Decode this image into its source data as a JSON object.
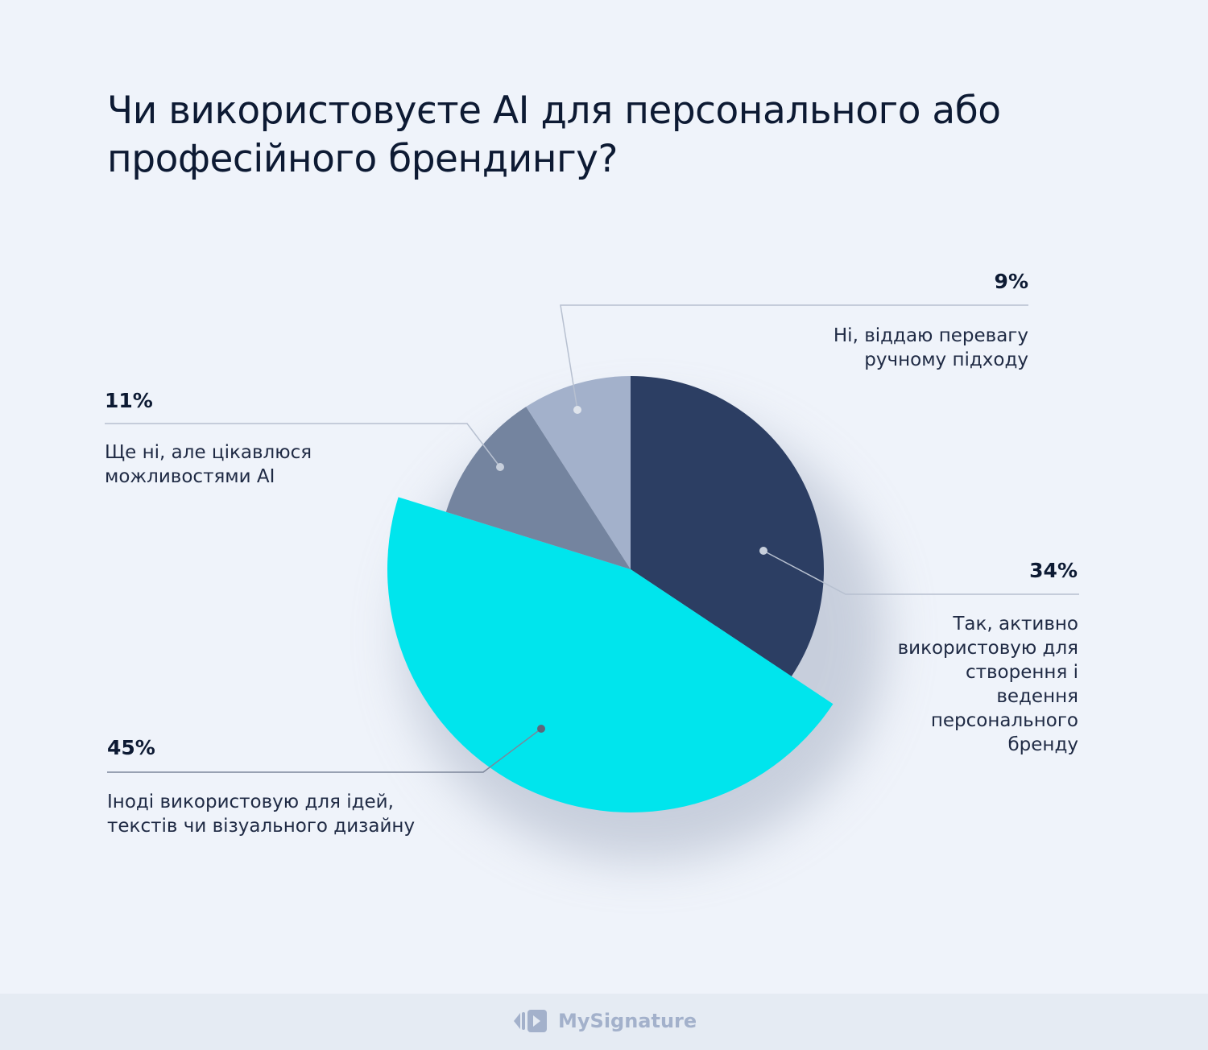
{
  "title": "Чи використовуєте AI для персонального або професійного брендингу?",
  "chart_data": {
    "type": "pie",
    "title": "Чи використовуєте AI для персонального або професійного брендингу?",
    "slices": [
      {
        "label": "Так, активно використовую для створення і ведення персонального бренду",
        "value": 34,
        "value_label": "34%",
        "color": "#2c3e63"
      },
      {
        "label": "Іноді використовую для ідей, текстів чи візуального дизайну",
        "value": 45,
        "value_label": "45%",
        "color": "#00e5ed",
        "exploded": true
      },
      {
        "label": "Ще ні, але цікавлюся можливостями AI",
        "value": 11,
        "value_label": "11%",
        "color": "#74849f"
      },
      {
        "label": "Ні, віддаю перевагу ручному підходу",
        "value": 9,
        "value_label": "9%",
        "color": "#a3b1cb"
      }
    ],
    "start": "top",
    "direction": "clockwise"
  },
  "footer": {
    "brand": "MySignature",
    "brand_color": "#a3b1cb"
  }
}
